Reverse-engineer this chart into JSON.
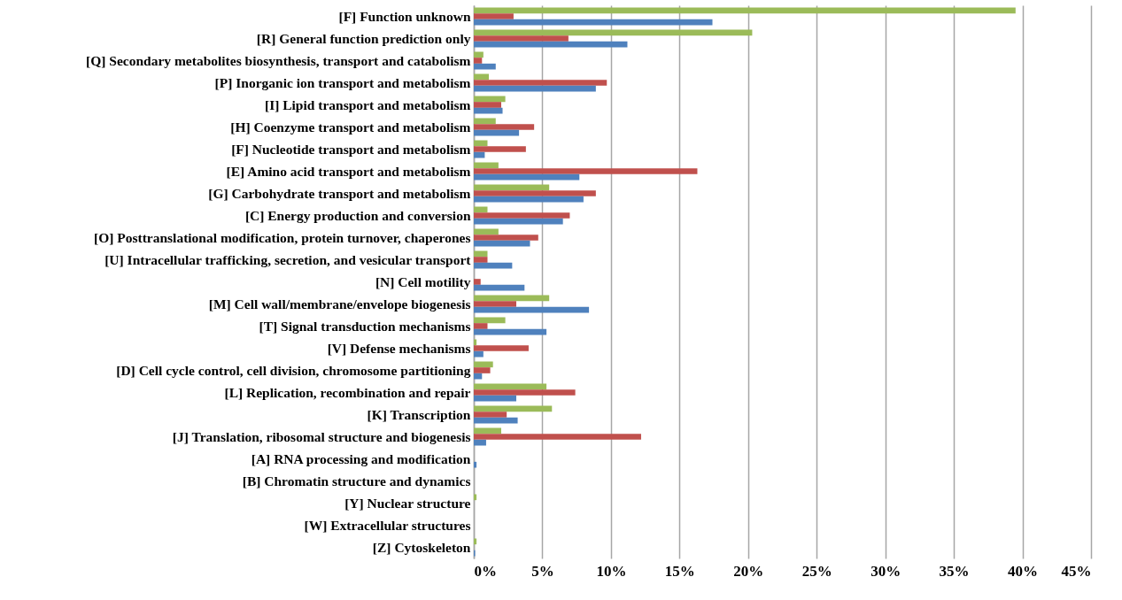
{
  "chart_data": {
    "type": "bar",
    "orientation": "horizontal",
    "categories": [
      "[F] Function unknown",
      "[R] General function prediction only",
      "[Q] Secondary metabolites biosynthesis, transport and catabolism",
      "[P] Inorganic ion transport and metabolism",
      "[I] Lipid transport and metabolism",
      "[H] Coenzyme transport and metabolism",
      "[F] Nucleotide transport and metabolism",
      "[E] Amino acid transport and metabolism",
      "[G] Carbohydrate transport and metabolism",
      "[C] Energy production and conversion",
      "[O] Posttranslational modification, protein turnover, chaperones",
      "[U] Intracellular trafficking, secretion, and vesicular transport",
      "[N] Cell motility",
      "[M] Cell wall/membrane/envelope biogenesis",
      "[T] Signal transduction mechanisms",
      "[V] Defense mechanisms",
      "[D] Cell cycle control, cell division, chromosome partitioning",
      "[L] Replication, recombination and repair",
      "[K] Transcription",
      "[J] Translation, ribosomal structure and biogenesis",
      "[A] RNA processing and modification",
      "[B] Chromatin structure and dynamics",
      "[Y] Nuclear structure",
      "[W] Extracellular structures",
      "[Z] Cytoskeleton"
    ],
    "series": [
      {
        "color": "#9bbb59",
        "values": [
          39.5,
          20.3,
          0.7,
          1.1,
          2.3,
          1.6,
          1.0,
          1.8,
          5.5,
          1.0,
          1.8,
          1.0,
          0,
          5.5,
          2.3,
          0.2,
          1.4,
          5.3,
          5.7,
          2.0,
          0,
          0,
          0.2,
          0,
          0.2
        ]
      },
      {
        "color": "#c0504d",
        "values": [
          2.9,
          6.9,
          0.6,
          9.7,
          2.0,
          4.4,
          3.8,
          16.3,
          8.9,
          7.0,
          4.7,
          1.0,
          0.5,
          3.1,
          1.0,
          4.0,
          1.2,
          7.4,
          2.4,
          12.2,
          0,
          0,
          0,
          0,
          0
        ]
      },
      {
        "color": "#4f81bd",
        "values": [
          17.4,
          11.2,
          1.6,
          8.9,
          2.1,
          3.3,
          0.8,
          7.7,
          8.0,
          6.5,
          4.1,
          2.8,
          3.7,
          8.4,
          5.3,
          0.7,
          0.6,
          3.1,
          3.2,
          0.9,
          0.2,
          0,
          0,
          0,
          0.1
        ]
      }
    ],
    "xlim": [
      0,
      45
    ],
    "xticks": [
      {
        "value": 0,
        "label": "0%"
      },
      {
        "value": 5,
        "label": "5%"
      },
      {
        "value": 10,
        "label": "10%"
      },
      {
        "value": 15,
        "label": "15%"
      },
      {
        "value": 20,
        "label": "20%"
      },
      {
        "value": 25,
        "label": "25%"
      },
      {
        "value": 30,
        "label": "30%"
      },
      {
        "value": 35,
        "label": "35%"
      },
      {
        "value": 40,
        "label": "40%"
      },
      {
        "value": 45,
        "label": "45%"
      }
    ],
    "grid": "x"
  }
}
